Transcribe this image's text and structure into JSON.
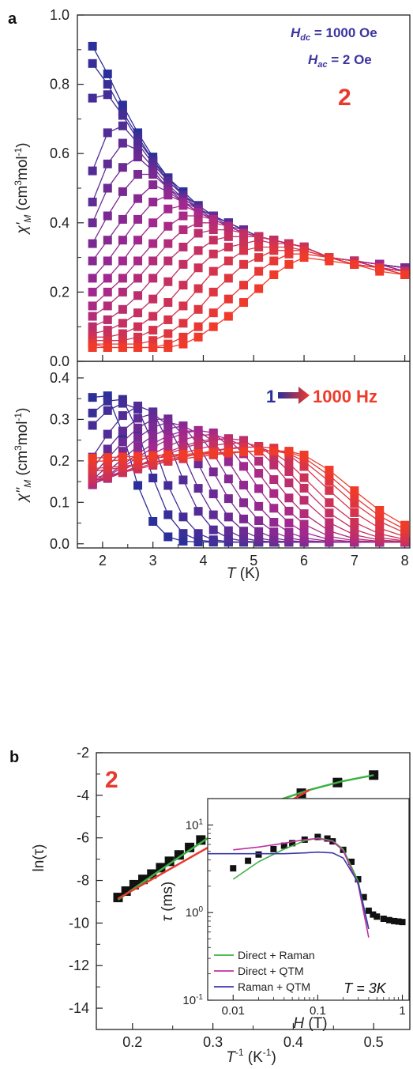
{
  "figure": {
    "panel_a_label": "a",
    "panel_b_label": "b",
    "compound_a": "2",
    "compound_b": "2",
    "hdc_label": "H",
    "hdc_sub": "dc",
    "hdc_value": " = 1000 Oe",
    "hac_label": "H",
    "hac_sub": "ac",
    "hac_value": " = 2 Oe",
    "freq_start": "1",
    "freq_end": "1000 Hz",
    "colors": {
      "cold": "#2b2f99",
      "mid": "#a0288f",
      "hot": "#f03a2a",
      "accent": "#e8392e",
      "axis": "#222222"
    }
  },
  "chart_data": [
    {
      "type": "line",
      "panel": "a-top",
      "xlabel": "T (K)",
      "ylabel": "χ'M (cm3mol-1)",
      "xlim": [
        1.5,
        8.1
      ],
      "ylim": [
        0.0,
        1.0
      ],
      "xticks": [
        "2",
        "3",
        "4",
        "5",
        "6",
        "7",
        "8"
      ],
      "yticks": [
        "0.0",
        "0.2",
        "0.4",
        "0.6",
        "0.8",
        "1.0"
      ],
      "x": [
        1.8,
        2.1,
        2.4,
        2.7,
        3.0,
        3.3,
        3.6,
        3.9,
        4.2,
        4.5,
        4.8,
        5.1,
        5.4,
        5.7,
        6.0,
        6.5,
        7.0,
        7.5,
        8.0
      ],
      "series": [
        {
          "values": [
            0.91,
            0.83,
            0.74,
            0.66,
            0.59,
            0.53,
            0.49,
            0.45,
            0.42,
            0.4,
            0.38,
            0.36,
            0.35,
            0.34,
            0.33,
            0.3,
            0.29,
            0.28,
            0.27
          ]
        },
        {
          "values": [
            0.86,
            0.8,
            0.72,
            0.65,
            0.58,
            0.53,
            0.48,
            0.45,
            0.42,
            0.4,
            0.38,
            0.36,
            0.35,
            0.34,
            0.33,
            0.3,
            0.29,
            0.28,
            0.27
          ]
        },
        {
          "values": [
            0.76,
            0.77,
            0.71,
            0.64,
            0.58,
            0.52,
            0.48,
            0.45,
            0.42,
            0.4,
            0.38,
            0.36,
            0.35,
            0.34,
            0.33,
            0.3,
            0.29,
            0.28,
            0.27
          ]
        },
        {
          "values": [
            0.55,
            0.66,
            0.68,
            0.63,
            0.57,
            0.52,
            0.48,
            0.44,
            0.42,
            0.4,
            0.38,
            0.36,
            0.35,
            0.34,
            0.33,
            0.3,
            0.29,
            0.28,
            0.27
          ]
        },
        {
          "values": [
            0.46,
            0.57,
            0.63,
            0.61,
            0.56,
            0.51,
            0.47,
            0.44,
            0.42,
            0.39,
            0.38,
            0.36,
            0.35,
            0.34,
            0.33,
            0.3,
            0.29,
            0.28,
            0.27
          ]
        },
        {
          "values": [
            0.4,
            0.5,
            0.56,
            0.59,
            0.55,
            0.5,
            0.47,
            0.44,
            0.41,
            0.39,
            0.37,
            0.36,
            0.35,
            0.34,
            0.33,
            0.3,
            0.29,
            0.28,
            0.27
          ]
        },
        {
          "values": [
            0.34,
            0.42,
            0.49,
            0.54,
            0.54,
            0.5,
            0.46,
            0.44,
            0.41,
            0.39,
            0.37,
            0.36,
            0.35,
            0.34,
            0.33,
            0.3,
            0.29,
            0.28,
            0.27
          ]
        },
        {
          "values": [
            0.29,
            0.35,
            0.41,
            0.47,
            0.51,
            0.49,
            0.46,
            0.43,
            0.41,
            0.39,
            0.37,
            0.36,
            0.35,
            0.34,
            0.33,
            0.3,
            0.29,
            0.28,
            0.26
          ]
        },
        {
          "values": [
            0.24,
            0.29,
            0.35,
            0.41,
            0.46,
            0.48,
            0.46,
            0.43,
            0.41,
            0.39,
            0.37,
            0.36,
            0.35,
            0.34,
            0.33,
            0.3,
            0.29,
            0.28,
            0.26
          ]
        },
        {
          "values": [
            0.2,
            0.24,
            0.29,
            0.35,
            0.4,
            0.44,
            0.45,
            0.43,
            0.41,
            0.39,
            0.37,
            0.36,
            0.35,
            0.34,
            0.33,
            0.3,
            0.29,
            0.28,
            0.26
          ]
        },
        {
          "values": [
            0.16,
            0.2,
            0.24,
            0.29,
            0.34,
            0.39,
            0.42,
            0.42,
            0.41,
            0.39,
            0.37,
            0.36,
            0.35,
            0.34,
            0.33,
            0.3,
            0.29,
            0.27,
            0.26
          ]
        },
        {
          "values": [
            0.13,
            0.16,
            0.2,
            0.24,
            0.29,
            0.34,
            0.38,
            0.4,
            0.4,
            0.39,
            0.37,
            0.36,
            0.35,
            0.34,
            0.33,
            0.3,
            0.29,
            0.27,
            0.26
          ]
        },
        {
          "values": [
            0.1,
            0.12,
            0.15,
            0.19,
            0.24,
            0.29,
            0.33,
            0.37,
            0.38,
            0.38,
            0.37,
            0.36,
            0.35,
            0.34,
            0.33,
            0.3,
            0.29,
            0.27,
            0.26
          ]
        },
        {
          "values": [
            0.08,
            0.09,
            0.11,
            0.14,
            0.18,
            0.23,
            0.28,
            0.32,
            0.35,
            0.36,
            0.36,
            0.36,
            0.35,
            0.34,
            0.33,
            0.3,
            0.29,
            0.27,
            0.26
          ]
        },
        {
          "values": [
            0.07,
            0.07,
            0.08,
            0.1,
            0.13,
            0.17,
            0.22,
            0.27,
            0.31,
            0.33,
            0.34,
            0.35,
            0.34,
            0.34,
            0.33,
            0.3,
            0.28,
            0.27,
            0.26
          ]
        },
        {
          "values": [
            0.06,
            0.06,
            0.06,
            0.07,
            0.09,
            0.12,
            0.16,
            0.21,
            0.26,
            0.29,
            0.32,
            0.33,
            0.33,
            0.33,
            0.32,
            0.3,
            0.28,
            0.27,
            0.25
          ]
        },
        {
          "values": [
            0.05,
            0.05,
            0.05,
            0.05,
            0.06,
            0.08,
            0.11,
            0.15,
            0.2,
            0.24,
            0.28,
            0.3,
            0.32,
            0.32,
            0.32,
            0.3,
            0.28,
            0.27,
            0.25
          ]
        },
        {
          "values": [
            0.05,
            0.04,
            0.04,
            0.04,
            0.04,
            0.05,
            0.07,
            0.1,
            0.14,
            0.18,
            0.22,
            0.26,
            0.29,
            0.31,
            0.31,
            0.3,
            0.28,
            0.27,
            0.25
          ]
        },
        {
          "values": [
            0.04,
            0.04,
            0.04,
            0.04,
            0.04,
            0.04,
            0.05,
            0.07,
            0.1,
            0.13,
            0.17,
            0.21,
            0.25,
            0.28,
            0.3,
            0.29,
            0.28,
            0.26,
            0.25
          ]
        }
      ]
    },
    {
      "type": "line",
      "panel": "a-bottom",
      "xlabel": "T (K)",
      "ylabel": "χ''M (cm3mol-1)",
      "xlim": [
        1.5,
        8.1
      ],
      "ylim": [
        -0.01,
        0.44
      ],
      "xticks": [
        "2",
        "3",
        "4",
        "5",
        "6",
        "7",
        "8"
      ],
      "yticks": [
        "0.0",
        "0.1",
        "0.2",
        "0.3",
        "0.4"
      ],
      "x": [
        1.8,
        2.1,
        2.4,
        2.7,
        3.0,
        3.3,
        3.6,
        3.9,
        4.2,
        4.5,
        4.8,
        5.1,
        5.4,
        5.7,
        6.0,
        6.5,
        7.0,
        7.5,
        8.0
      ],
      "peak_x": [
        2.0,
        2.3,
        2.5,
        2.8,
        3.0,
        3.2,
        3.4,
        3.6,
        3.8,
        4.0,
        4.2,
        4.4,
        4.6,
        4.8,
        5.0,
        5.2,
        5.4,
        5.5,
        5.6
      ],
      "peak_y": [
        0.36,
        0.35,
        0.34,
        0.33,
        0.31,
        0.3,
        0.29,
        0.28,
        0.27,
        0.27,
        0.26,
        0.25,
        0.25,
        0.24,
        0.23,
        0.23,
        0.22,
        0.22,
        0.22
      ],
      "base_y": [
        0.01,
        0.01,
        0.02,
        0.03,
        0.04,
        0.05,
        0.06,
        0.07,
        0.08,
        0.09,
        0.1,
        0.11,
        0.12,
        0.13,
        0.14,
        0.16,
        0.17,
        0.19,
        0.2
      ]
    },
    {
      "type": "scatter",
      "panel": "b",
      "xlabel": "T-1 (K-1)",
      "ylabel": "ln(τ)",
      "xlim": [
        0.155,
        0.545
      ],
      "ylim": [
        -15,
        -2
      ],
      "xticks": [
        "0.2",
        "0.3",
        "0.4",
        "0.5"
      ],
      "yticks": [
        "-2",
        "-4",
        "-6",
        "-8",
        "-10",
        "-12",
        "-14"
      ],
      "series": [
        {
          "name": "data",
          "x": [
            0.182,
            0.192,
            0.202,
            0.213,
            0.224,
            0.235,
            0.246,
            0.258,
            0.271,
            0.285,
            0.3,
            0.316,
            0.334,
            0.354,
            0.377,
            0.41,
            0.455,
            0.5
          ],
          "y": [
            -8.8,
            -8.5,
            -8.2,
            -7.95,
            -7.7,
            -7.4,
            -7.1,
            -6.8,
            -6.45,
            -6.1,
            -5.8,
            -5.5,
            -5.2,
            -4.85,
            -4.45,
            -3.9,
            -3.4,
            -3.05
          ]
        },
        {
          "name": "fit-red",
          "x": [
            0.182,
            0.42
          ],
          "y": [
            -8.85,
            -3.75
          ]
        },
        {
          "name": "fit-green",
          "x": [
            0.182,
            0.22,
            0.26,
            0.3,
            0.34,
            0.38,
            0.42,
            0.46,
            0.5
          ],
          "y": [
            -8.9,
            -7.9,
            -6.85,
            -5.85,
            -4.95,
            -4.25,
            -3.75,
            -3.35,
            -3.05
          ]
        }
      ]
    },
    {
      "type": "line",
      "panel": "b-inset",
      "xlabel": "H (T)",
      "ylabel": "τ (ms)",
      "xscale": "log",
      "yscale": "log",
      "xlim": [
        0.005,
        1.2
      ],
      "ylim": [
        0.1,
        20
      ],
      "xticks": [
        "0.01",
        "0.1",
        "1"
      ],
      "yticks": [
        "10-1",
        "100",
        "101"
      ],
      "annotation": "T = 3K",
      "series": [
        {
          "name": "data",
          "x": [
            0.01,
            0.015,
            0.02,
            0.03,
            0.04,
            0.05,
            0.07,
            0.1,
            0.13,
            0.15,
            0.2,
            0.25,
            0.3,
            0.35,
            0.4,
            0.45,
            0.5,
            0.6,
            0.7,
            0.8,
            0.9,
            1.0
          ],
          "y": [
            3.2,
            3.9,
            4.6,
            5.3,
            5.8,
            6.2,
            6.8,
            7.3,
            7.0,
            6.5,
            5.2,
            3.8,
            2.4,
            1.5,
            1.05,
            0.95,
            0.9,
            0.85,
            0.82,
            0.8,
            0.79,
            0.78
          ]
        },
        {
          "name": "Direct + Raman",
          "x": [
            0.01,
            0.02,
            0.04,
            0.07,
            0.1,
            0.15,
            0.2,
            0.3,
            0.4
          ],
          "y": [
            2.4,
            3.8,
            5.3,
            6.6,
            7.1,
            6.6,
            5.3,
            2.3,
            0.65
          ]
        },
        {
          "name": "Direct + QTM",
          "x": [
            0.01,
            0.02,
            0.04,
            0.07,
            0.1,
            0.15,
            0.2,
            0.3,
            0.4
          ],
          "y": [
            5.2,
            5.6,
            6.2,
            6.8,
            7.0,
            6.5,
            5.1,
            2.1,
            0.52
          ]
        },
        {
          "name": "Raman + QTM",
          "x": [
            0.005,
            0.01,
            0.02,
            0.04,
            0.07,
            0.1,
            0.15,
            0.2,
            0.3,
            0.4
          ],
          "y": [
            4.7,
            4.7,
            4.7,
            4.7,
            4.8,
            4.9,
            4.8,
            4.2,
            2.2,
            0.65
          ]
        }
      ],
      "legend_position": "bottom-left"
    }
  ]
}
